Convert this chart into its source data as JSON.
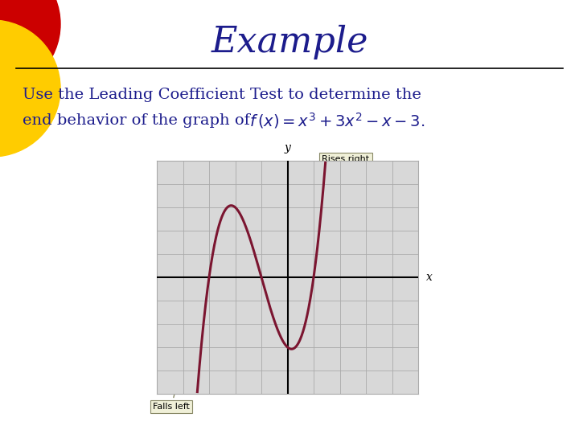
{
  "title": "Example",
  "title_color": "#1C1C8C",
  "title_fontsize": 32,
  "background_color": "#FFFFFF",
  "body_text_line1": "Use the Leading Coefficient Test to determine the",
  "body_text_line2": "end behavior of the graph of ",
  "body_color": "#1C1C8C",
  "body_fontsize": 14,
  "graph": {
    "xlim": [
      -5,
      5
    ],
    "ylim": [
      -5,
      5
    ],
    "grid_color": "#AAAAAA",
    "curve_color": "#7B1530",
    "curve_linewidth": 2.2,
    "axis_color": "#000000",
    "bg_color": "#D8D8D8"
  },
  "annotation_rises_right": "Rises right",
  "annotation_falls_left": "Falls left",
  "annotation_fontsize": 8,
  "red_circle_color": "#CC0000",
  "yellow_circle_color": "#FFCC00"
}
